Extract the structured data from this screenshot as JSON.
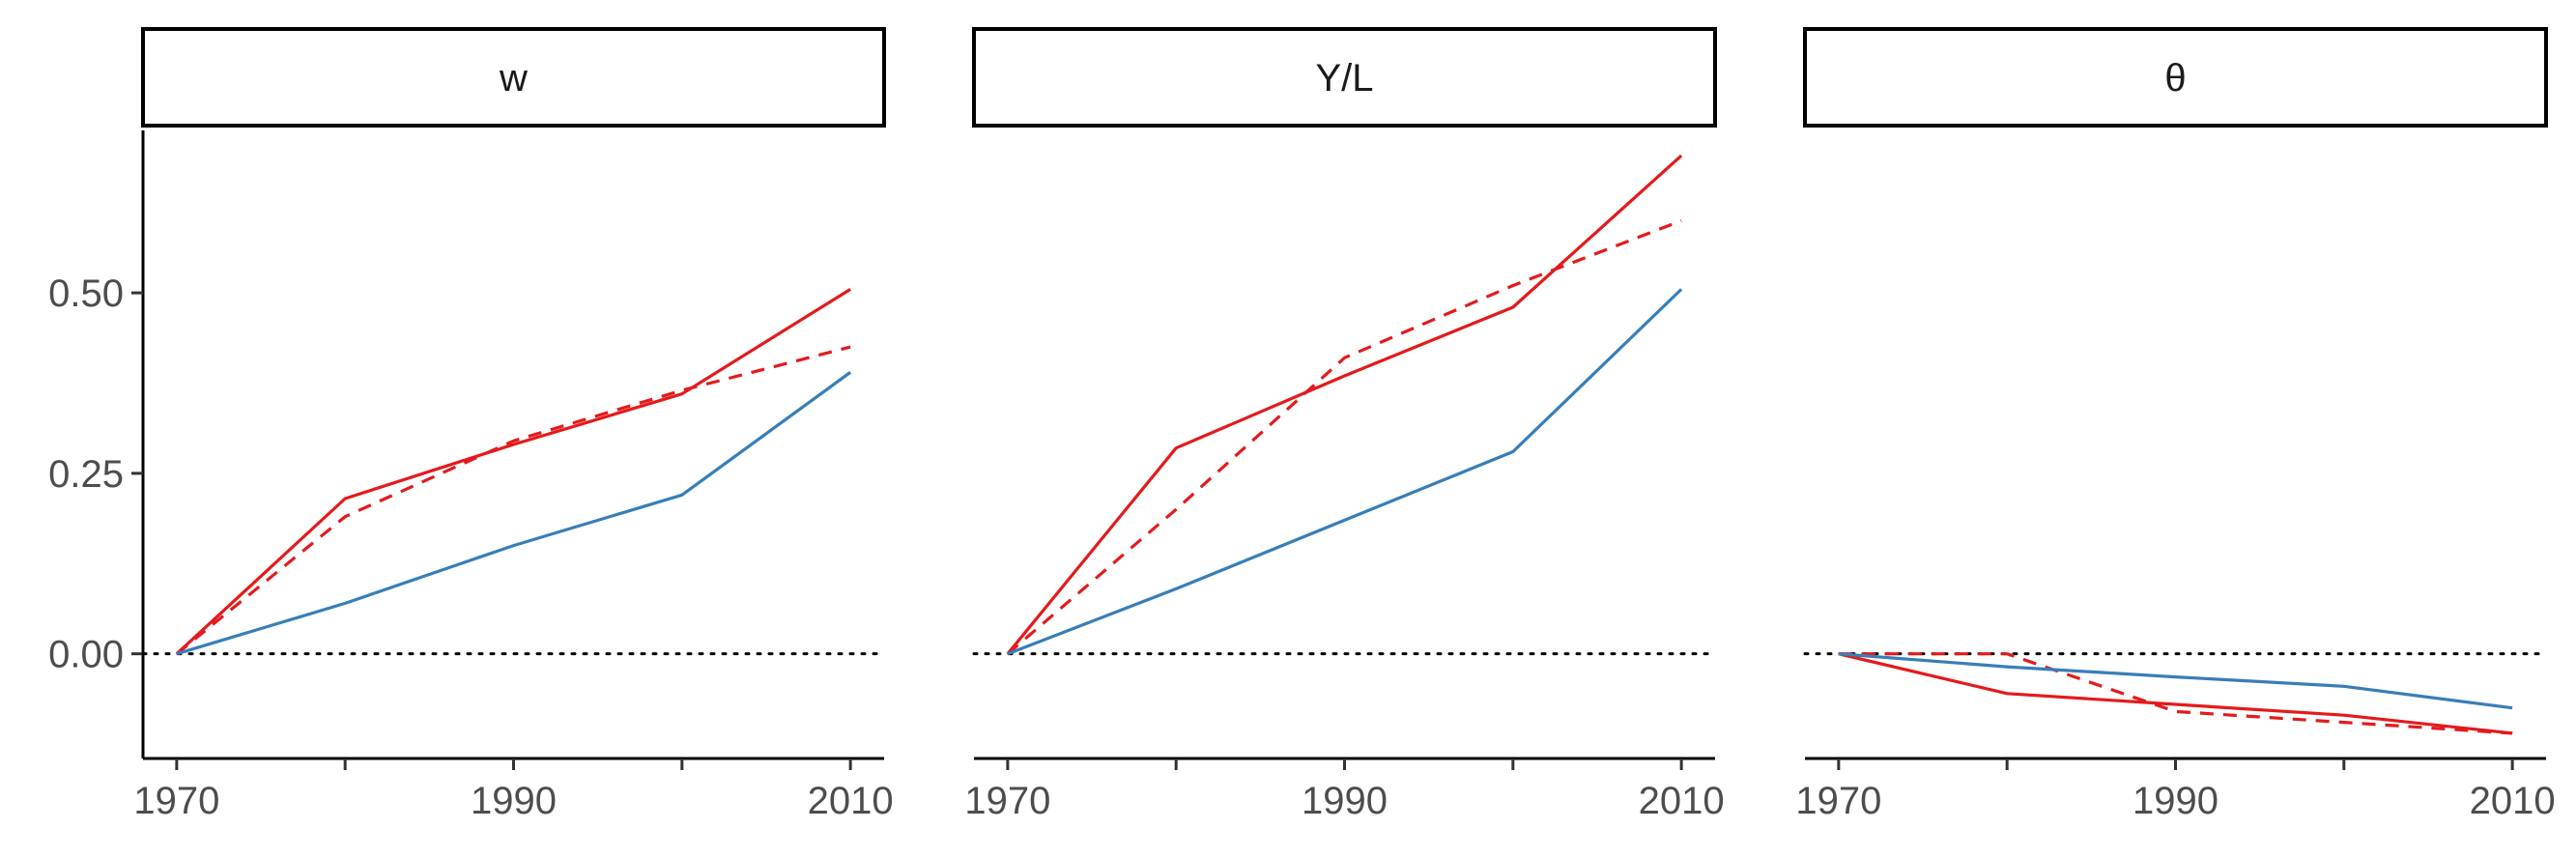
{
  "chart_data": {
    "type": "line",
    "x_ticks": [
      1970,
      1990,
      2010
    ],
    "x_minor_ticks": [
      1970,
      1980,
      1990,
      2000,
      2010
    ],
    "xlim": [
      1968,
      2012
    ],
    "ylim": [
      -0.145,
      0.725
    ],
    "y_ticks": [
      {
        "value": 0.0,
        "label": "0.00"
      },
      {
        "value": 0.25,
        "label": "0.25"
      },
      {
        "value": 0.5,
        "label": "0.50"
      }
    ],
    "reference_line": {
      "y": 0,
      "style": "dotted"
    },
    "panels": [
      {
        "title": "w",
        "series": [
          {
            "color": "#e41a1c",
            "dash": "solid",
            "x": [
              1970,
              1980,
              1990,
              2000,
              2010
            ],
            "y": [
              0.0,
              0.215,
              0.29,
              0.36,
              0.505
            ]
          },
          {
            "color": "#e41a1c",
            "dash": "dashed",
            "x": [
              1970,
              1980,
              1990,
              2000,
              2010
            ],
            "y": [
              0.0,
              0.19,
              0.295,
              0.365,
              0.425
            ]
          },
          {
            "color": "#377eb8",
            "dash": "solid",
            "x": [
              1970,
              1980,
              1990,
              2000,
              2010
            ],
            "y": [
              0.0,
              0.07,
              0.15,
              0.22,
              0.39
            ]
          }
        ]
      },
      {
        "title": "Y/L",
        "series": [
          {
            "color": "#e41a1c",
            "dash": "solid",
            "x": [
              1970,
              1980,
              1990,
              2000,
              2010
            ],
            "y": [
              0.0,
              0.285,
              0.385,
              0.48,
              0.69
            ]
          },
          {
            "color": "#e41a1c",
            "dash": "dashed",
            "x": [
              1970,
              1980,
              1990,
              2000,
              2010
            ],
            "y": [
              0.0,
              0.2,
              0.41,
              0.51,
              0.6
            ]
          },
          {
            "color": "#377eb8",
            "dash": "solid",
            "x": [
              1970,
              1980,
              1990,
              2000,
              2010
            ],
            "y": [
              0.0,
              0.09,
              0.185,
              0.28,
              0.505
            ]
          }
        ]
      },
      {
        "title": "θ",
        "series": [
          {
            "color": "#e41a1c",
            "dash": "solid",
            "x": [
              1970,
              1980,
              1990,
              2000,
              2010
            ],
            "y": [
              0.0,
              -0.055,
              -0.07,
              -0.085,
              -0.11
            ]
          },
          {
            "color": "#e41a1c",
            "dash": "dashed",
            "x": [
              1970,
              1980,
              1990,
              2000,
              2010
            ],
            "y": [
              0.0,
              0.0,
              -0.08,
              -0.095,
              -0.11
            ]
          },
          {
            "color": "#377eb8",
            "dash": "solid",
            "x": [
              1970,
              1980,
              1990,
              2000,
              2010
            ],
            "y": [
              0.0,
              -0.018,
              -0.032,
              -0.045,
              -0.075
            ]
          }
        ]
      }
    ]
  }
}
